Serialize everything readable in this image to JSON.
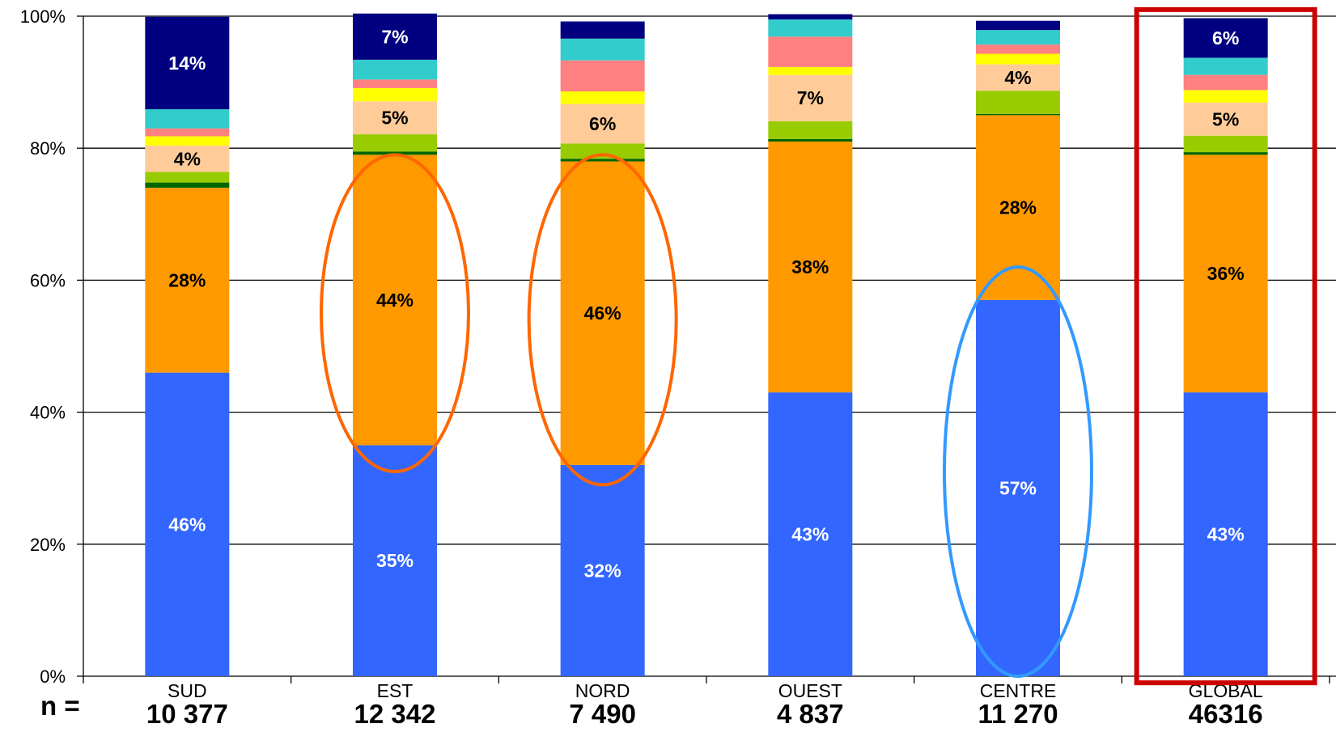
{
  "chart_data": {
    "type": "bar",
    "stacked": true,
    "percent_axis": true,
    "ylim": [
      0,
      100
    ],
    "y_ticks": [
      "0%",
      "20%",
      "40%",
      "60%",
      "80%",
      "100%"
    ],
    "grid": true,
    "n_prefix": "n =",
    "categories": [
      "SUD",
      "EST",
      "NORD",
      "OUEST",
      "CENTRE",
      "GLOBAL"
    ],
    "n_values": [
      "10 377",
      "12 342",
      "7 490",
      "4 837",
      "11 270",
      "46316"
    ],
    "series_colors": [
      "#3366ff",
      "#ff9900",
      "#006600",
      "#99cc00",
      "#ffcc99",
      "#ffff00",
      "#ff8080",
      "#33cccc",
      "#000080"
    ],
    "series": [
      {
        "values": [
          46,
          35,
          32,
          43,
          57,
          43
        ]
      },
      {
        "values": [
          28,
          44,
          46,
          38,
          28,
          36
        ]
      },
      {
        "values": [
          0.8,
          0.5,
          0.4,
          0.4,
          0.2,
          0.4
        ]
      },
      {
        "values": [
          1.6,
          2.6,
          2.3,
          2.7,
          3.5,
          2.5
        ]
      },
      {
        "values": [
          4,
          5,
          6,
          7,
          4,
          5
        ]
      },
      {
        "values": [
          1.4,
          2.0,
          1.9,
          1.2,
          1.6,
          1.9
        ]
      },
      {
        "values": [
          1.2,
          1.3,
          4.7,
          4.6,
          1.4,
          2.3
        ]
      },
      {
        "values": [
          2.9,
          3.0,
          3.3,
          2.6,
          2.2,
          2.6
        ]
      },
      {
        "values": [
          14,
          7,
          2.6,
          0.8,
          1.4,
          6
        ]
      }
    ],
    "data_labels": [
      {
        "bar": 0,
        "series": 0,
        "text": "46%"
      },
      {
        "bar": 0,
        "series": 1,
        "text": "28%"
      },
      {
        "bar": 0,
        "series": 4,
        "text": "4%"
      },
      {
        "bar": 0,
        "series": 8,
        "text": "14%"
      },
      {
        "bar": 1,
        "series": 0,
        "text": "35%"
      },
      {
        "bar": 1,
        "series": 1,
        "text": "44%"
      },
      {
        "bar": 1,
        "series": 4,
        "text": "5%"
      },
      {
        "bar": 1,
        "series": 8,
        "text": "7%"
      },
      {
        "bar": 2,
        "series": 0,
        "text": "32%"
      },
      {
        "bar": 2,
        "series": 1,
        "text": "46%"
      },
      {
        "bar": 2,
        "series": 4,
        "text": "6%"
      },
      {
        "bar": 3,
        "series": 0,
        "text": "43%"
      },
      {
        "bar": 3,
        "series": 1,
        "text": "38%"
      },
      {
        "bar": 3,
        "series": 4,
        "text": "7%"
      },
      {
        "bar": 4,
        "series": 0,
        "text": "57%"
      },
      {
        "bar": 4,
        "series": 1,
        "text": "28%"
      },
      {
        "bar": 4,
        "series": 4,
        "text": "4%"
      },
      {
        "bar": 5,
        "series": 0,
        "text": "43%"
      },
      {
        "bar": 5,
        "series": 1,
        "text": "36%"
      },
      {
        "bar": 5,
        "series": 4,
        "text": "5%"
      },
      {
        "bar": 5,
        "series": 8,
        "text": "6%"
      }
    ],
    "annotations": [
      {
        "shape": "ellipse",
        "color": "#ff6600",
        "bar": 1,
        "range": [
          31,
          79
        ]
      },
      {
        "shape": "ellipse",
        "color": "#ff6600",
        "bar": 2,
        "range": [
          29,
          79
        ]
      },
      {
        "shape": "ellipse",
        "color": "#3399ff",
        "bar": 4,
        "range": [
          0,
          62
        ]
      },
      {
        "shape": "rectangle",
        "color": "#cc0000",
        "bar": 5,
        "range": [
          -1,
          101
        ]
      }
    ]
  }
}
